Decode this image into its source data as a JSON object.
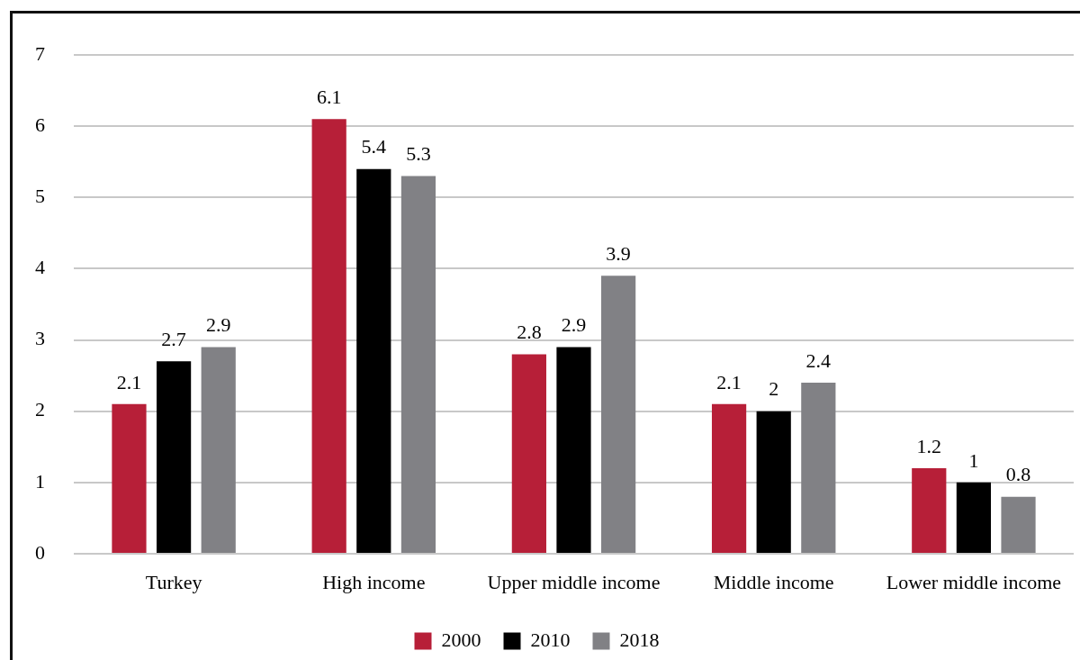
{
  "chart_data": {
    "type": "bar",
    "categories": [
      "Turkey",
      "High income",
      "Upper middle income",
      "Middle income",
      "Lower middle income"
    ],
    "series": [
      {
        "name": "2000",
        "color": "#b71f38",
        "values": [
          2.1,
          6.1,
          2.8,
          2.1,
          1.2
        ]
      },
      {
        "name": "2010",
        "color": "#000000",
        "values": [
          2.7,
          5.4,
          2.9,
          2,
          1
        ]
      },
      {
        "name": "2018",
        "color": "#818185",
        "values": [
          2.9,
          5.3,
          3.9,
          2.4,
          0.8
        ]
      }
    ],
    "ylim": [
      0,
      7
    ],
    "yticks": [
      0,
      1,
      2,
      3,
      4,
      5,
      6,
      7
    ],
    "grid": "y",
    "legend": "bottom",
    "data_labels": true
  }
}
